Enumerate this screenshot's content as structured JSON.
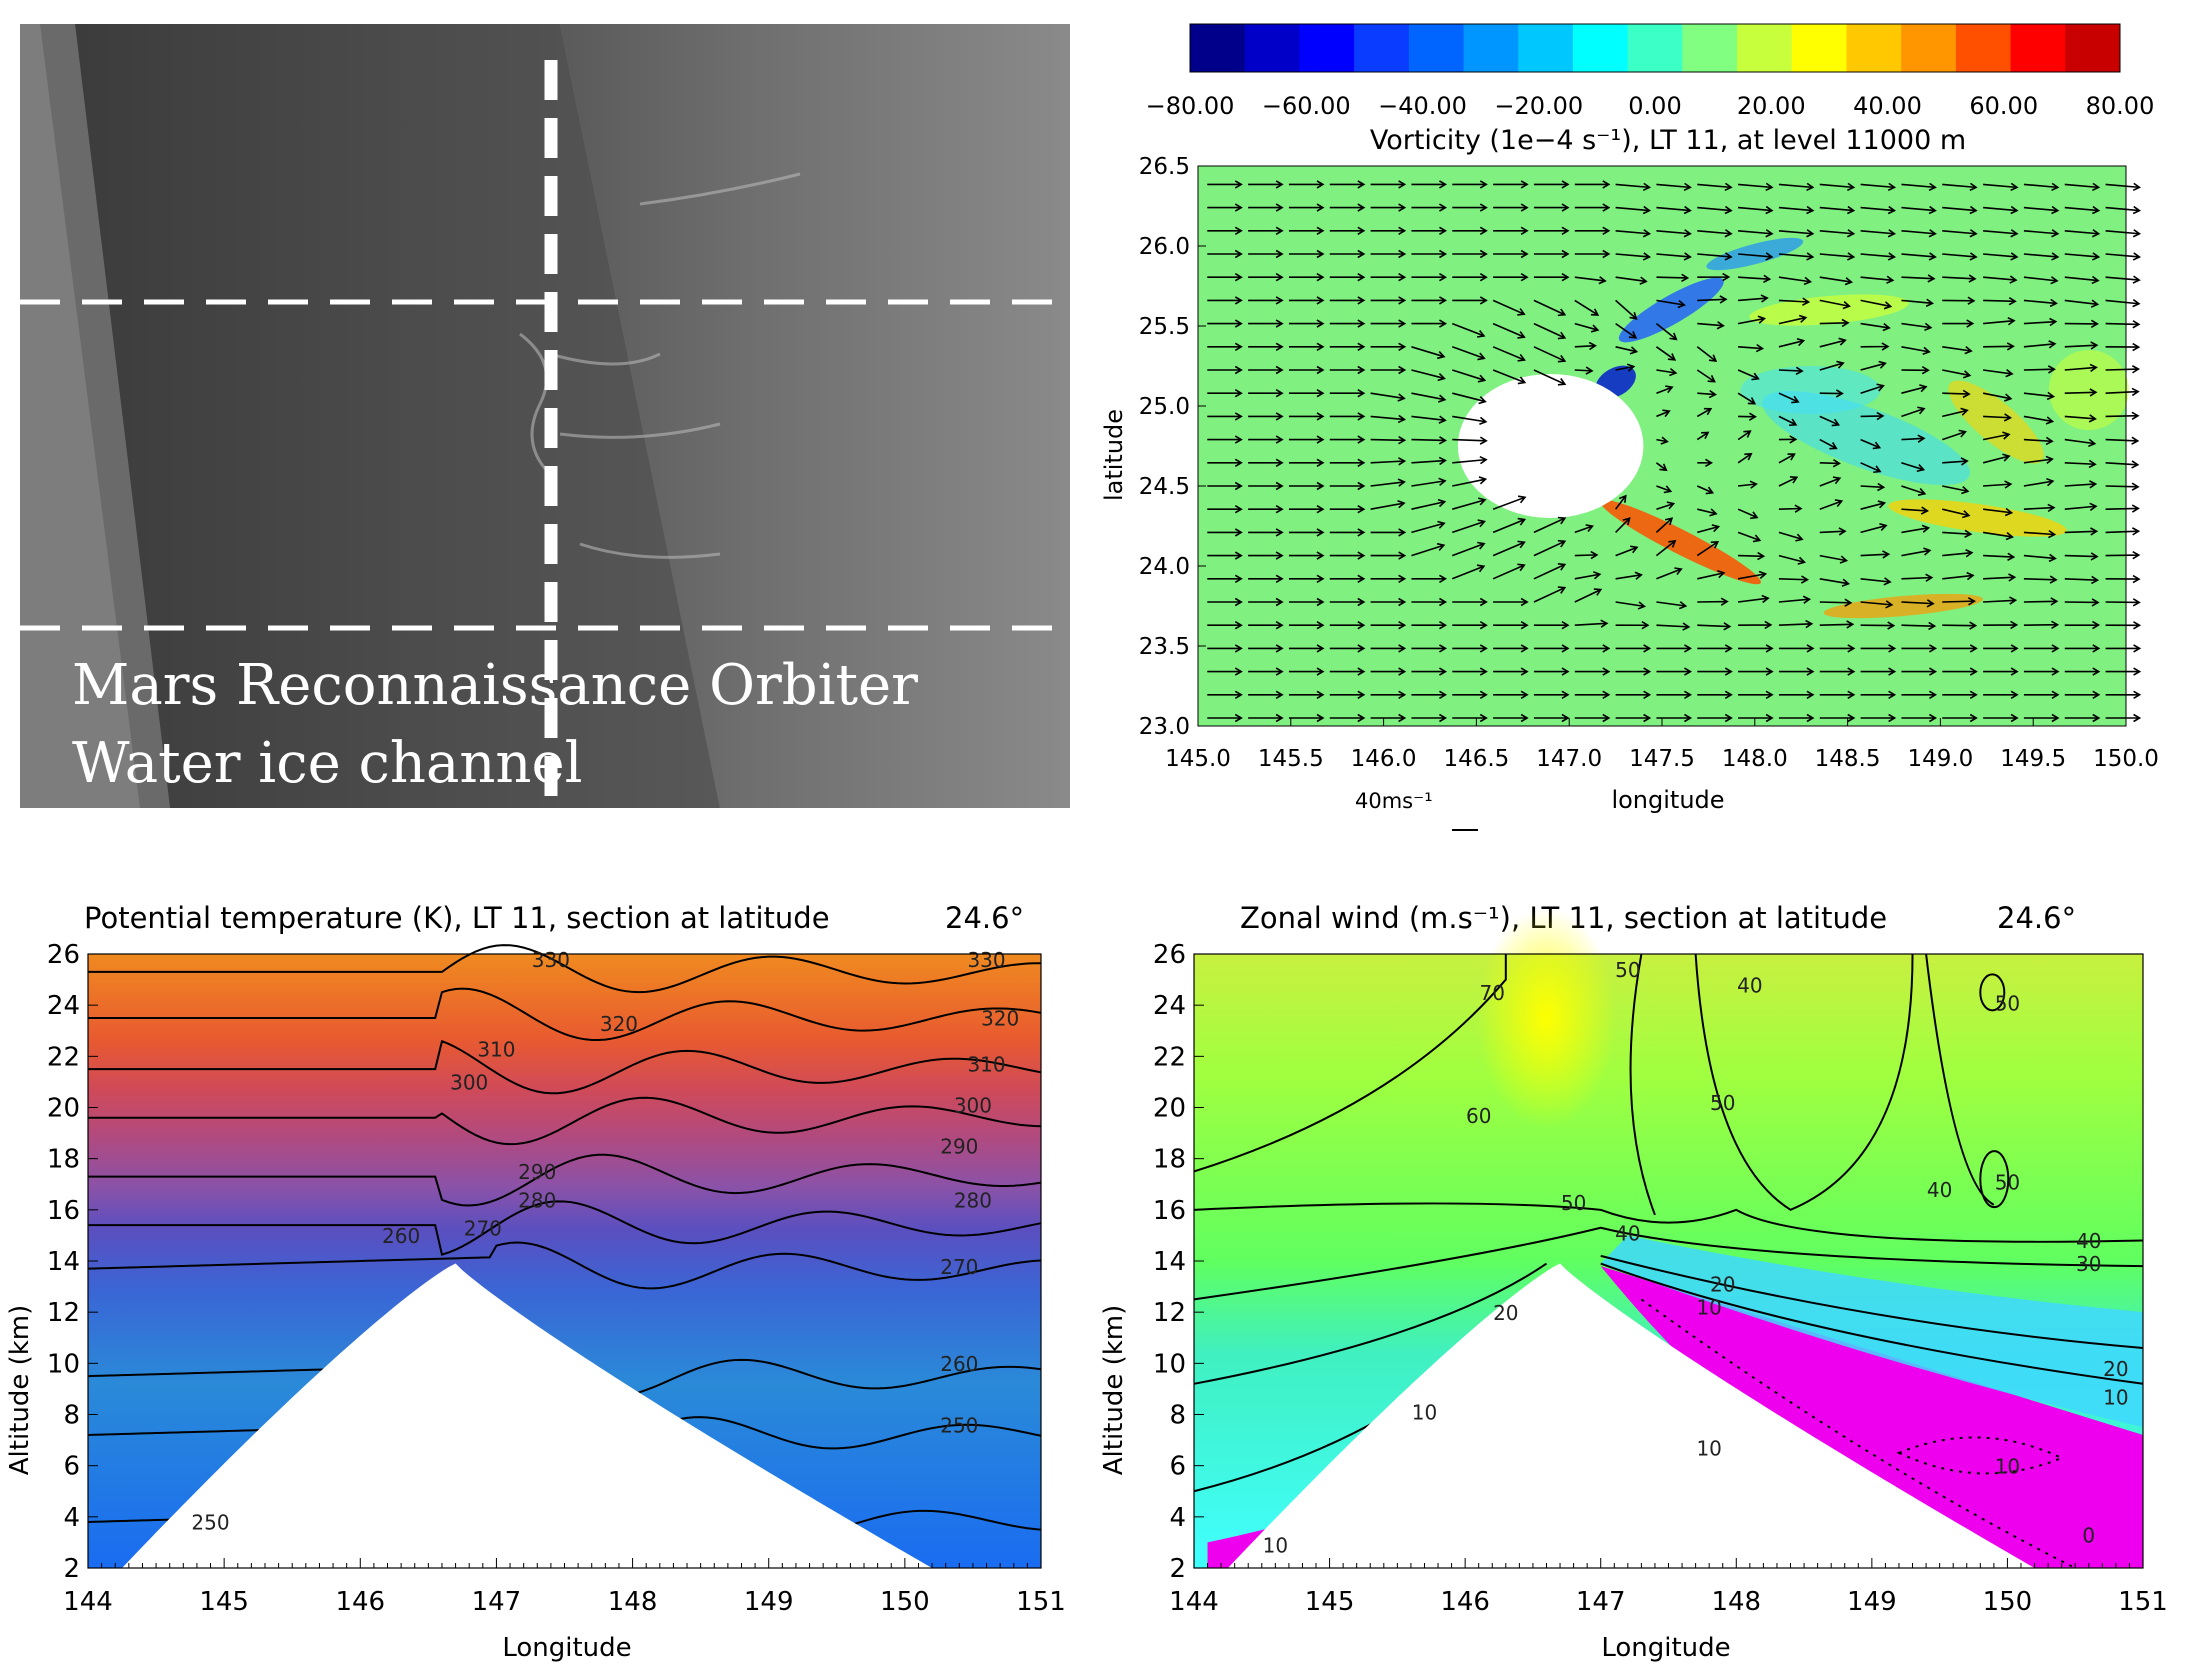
{
  "image_panel": {
    "caption_line1": "Mars Reconnaissance Orbiter",
    "caption_line2": "Water ice channel"
  },
  "chart_data": [
    {
      "type": "heatmap",
      "title": "Vorticity (1e−4 s⁻¹), LT 11, at level 11000 m",
      "xlabel": "longitude",
      "ylabel": "latitude",
      "xlim": [
        145.0,
        150.0
      ],
      "ylim": [
        23.0,
        26.5
      ],
      "x_ticks": [
        "145.0",
        "145.5",
        "146.0",
        "146.5",
        "147.0",
        "147.5",
        "148.0",
        "148.5",
        "149.0",
        "149.5",
        "150.0"
      ],
      "y_ticks": [
        "23.0",
        "23.5",
        "24.0",
        "24.5",
        "25.0",
        "25.5",
        "26.0",
        "26.5"
      ],
      "colorbar": {
        "ticks": [
          "−80.00",
          "−60.00",
          "−40.00",
          "−20.00",
          "0.00",
          "20.00",
          "40.00",
          "60.00",
          "80.00"
        ],
        "range": [
          -80,
          80
        ],
        "colors": [
          "#00008b",
          "#0000c8",
          "#0000ff",
          "#0a3cff",
          "#0064ff",
          "#0096ff",
          "#00c8ff",
          "#00ffff",
          "#3cffc8",
          "#80ff80",
          "#c8ff3c",
          "#ffff00",
          "#ffc800",
          "#ff9600",
          "#ff5000",
          "#ff0000",
          "#c80000"
        ]
      },
      "vector_reference": "40ms⁻¹",
      "background_color": "#80f080",
      "obstacle": {
        "lon": 146.9,
        "lat": 24.75,
        "radius_lon": 0.5,
        "radius_lat": 0.45
      }
    },
    {
      "type": "heatmap",
      "title": "Potential temperature (K), LT 11, section at latitude",
      "title_value": "24.6°",
      "xlabel": "Longitude",
      "ylabel": "Altitude (km)",
      "xlim": [
        144,
        151
      ],
      "ylim": [
        2,
        26
      ],
      "x_ticks": [
        "144",
        "145",
        "146",
        "147",
        "148",
        "149",
        "150",
        "151"
      ],
      "y_ticks": [
        "2",
        "4",
        "6",
        "8",
        "10",
        "12",
        "14",
        "16",
        "18",
        "20",
        "22",
        "24",
        "26"
      ],
      "contour_labels": [
        {
          "text": "330",
          "x": 147.4,
          "y": 25.5
        },
        {
          "text": "330",
          "x": 150.6,
          "y": 25.5
        },
        {
          "text": "320",
          "x": 147.9,
          "y": 23.0
        },
        {
          "text": "320",
          "x": 150.7,
          "y": 23.2
        },
        {
          "text": "310",
          "x": 147.0,
          "y": 22.0
        },
        {
          "text": "310",
          "x": 150.6,
          "y": 21.4
        },
        {
          "text": "300",
          "x": 146.8,
          "y": 20.7
        },
        {
          "text": "300",
          "x": 150.5,
          "y": 19.8
        },
        {
          "text": "290",
          "x": 150.4,
          "y": 18.2
        },
        {
          "text": "290",
          "x": 147.3,
          "y": 17.2
        },
        {
          "text": "280",
          "x": 147.3,
          "y": 16.1
        },
        {
          "text": "280",
          "x": 150.5,
          "y": 16.1
        },
        {
          "text": "270",
          "x": 146.9,
          "y": 15.0
        },
        {
          "text": "270",
          "x": 150.4,
          "y": 13.5
        },
        {
          "text": "260",
          "x": 146.3,
          "y": 14.7
        },
        {
          "text": "260",
          "x": 150.4,
          "y": 9.7
        },
        {
          "text": "250",
          "x": 150.4,
          "y": 7.3
        },
        {
          "text": "250",
          "x": 144.9,
          "y": 3.5
        }
      ],
      "terrain_peak": {
        "lon": 146.7,
        "alt": 13.9
      }
    },
    {
      "type": "heatmap",
      "title": "Zonal wind (m.s⁻¹), LT 11, section at latitude",
      "title_value": "24.6°",
      "xlabel": "Longitude",
      "ylabel": "Altitude (km)",
      "xlim": [
        144,
        151
      ],
      "ylim": [
        2,
        26
      ],
      "x_ticks": [
        "144",
        "145",
        "146",
        "147",
        "148",
        "149",
        "150",
        "151"
      ],
      "y_ticks": [
        "2",
        "4",
        "6",
        "8",
        "10",
        "12",
        "14",
        "16",
        "18",
        "20",
        "22",
        "24",
        "26"
      ],
      "contour_labels": [
        {
          "text": "70",
          "x": 146.2,
          "y": 24.2
        },
        {
          "text": "50",
          "x": 147.2,
          "y": 25.1
        },
        {
          "text": "40",
          "x": 148.1,
          "y": 24.5
        },
        {
          "text": "50",
          "x": 150.0,
          "y": 23.8
        },
        {
          "text": "60",
          "x": 146.1,
          "y": 19.4
        },
        {
          "text": "50",
          "x": 147.9,
          "y": 19.9
        },
        {
          "text": "50",
          "x": 146.8,
          "y": 16.0
        },
        {
          "text": "40",
          "x": 149.5,
          "y": 16.5
        },
        {
          "text": "50",
          "x": 150.0,
          "y": 16.8
        },
        {
          "text": "40",
          "x": 147.2,
          "y": 14.8
        },
        {
          "text": "40",
          "x": 150.6,
          "y": 14.5
        },
        {
          "text": "30",
          "x": 150.6,
          "y": 13.6
        },
        {
          "text": "20",
          "x": 146.3,
          "y": 11.7
        },
        {
          "text": "20",
          "x": 147.9,
          "y": 12.8
        },
        {
          "text": "10",
          "x": 147.8,
          "y": 11.9
        },
        {
          "text": "10",
          "x": 145.7,
          "y": 7.8
        },
        {
          "text": "20",
          "x": 150.8,
          "y": 9.5
        },
        {
          "text": "10",
          "x": 150.8,
          "y": 8.4
        },
        {
          "text": "10",
          "x": 147.8,
          "y": 6.4
        },
        {
          "text": "10",
          "x": 150.0,
          "y": 5.7
        },
        {
          "text": "0",
          "x": 150.6,
          "y": 3.0
        },
        {
          "text": "10",
          "x": 144.6,
          "y": 2.6
        }
      ],
      "terrain_peak": {
        "lon": 146.7,
        "alt": 13.9
      }
    }
  ]
}
